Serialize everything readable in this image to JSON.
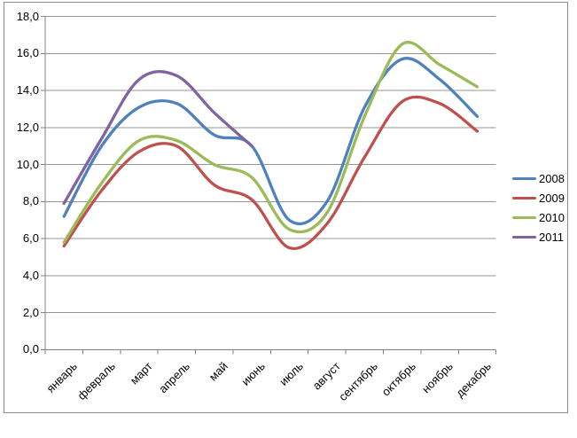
{
  "chart_data": {
    "type": "line",
    "title": "",
    "categories": [
      "январь",
      "февраль",
      "март",
      "апрель",
      "май",
      "июнь",
      "июль",
      "август",
      "сентябрь",
      "октябрь",
      "ноябрь",
      "декабрь"
    ],
    "series": [
      {
        "name": "2008",
        "color": "#4F81BD",
        "values": [
          7.2,
          11.0,
          13.1,
          13.3,
          11.6,
          11.0,
          7.0,
          8.0,
          13.1,
          15.7,
          14.6,
          12.6
        ]
      },
      {
        "name": "2009",
        "color": "#C0504D",
        "values": [
          5.6,
          8.6,
          10.7,
          11.0,
          8.9,
          8.1,
          5.5,
          6.8,
          10.4,
          13.4,
          13.3,
          11.8
        ]
      },
      {
        "name": "2010",
        "color": "#9BBB59",
        "values": [
          5.8,
          9.0,
          11.3,
          11.3,
          10.0,
          9.3,
          6.5,
          7.4,
          12.6,
          16.5,
          15.4,
          14.2
        ]
      },
      {
        "name": "2011",
        "color": "#8064A2",
        "values": [
          7.9,
          11.4,
          14.6,
          14.8,
          12.8,
          11.0
        ]
      }
    ],
    "ylim": [
      0,
      18
    ],
    "y_tick_step": 2,
    "y_tick_labels": [
      "0,0",
      "2,0",
      "4,0",
      "6,0",
      "8,0",
      "10,0",
      "12,0",
      "14,0",
      "16,0",
      "18,0"
    ],
    "xlabel": "",
    "ylabel": "",
    "grid": true,
    "legend_position": "right",
    "line_smoothing": true
  },
  "style": {
    "axis_color": "#808080",
    "grid_color": "#969696",
    "border_color": "#8C8C8C",
    "text_color": "#000000"
  }
}
